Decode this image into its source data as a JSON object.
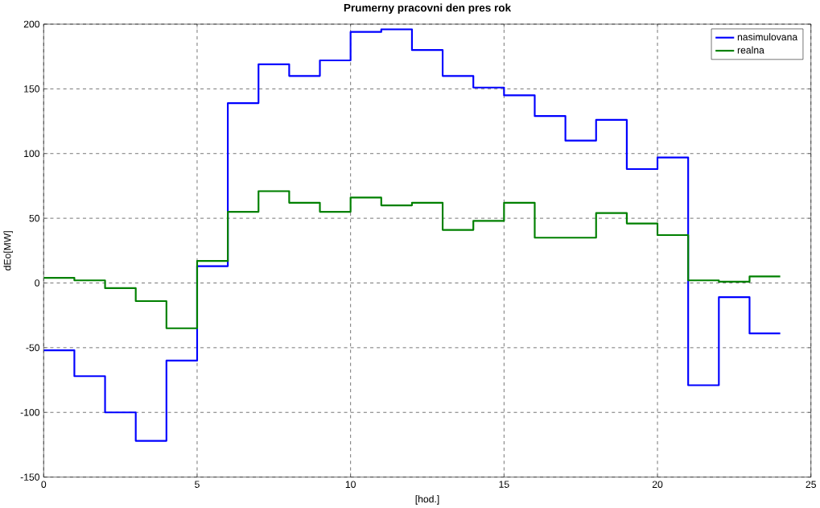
{
  "chart_data": {
    "type": "step",
    "title": "Prumerny pracovni den pres rok",
    "xlabel": "[hod.]",
    "ylabel": "dEo[MW]",
    "x": [
      0,
      1,
      2,
      3,
      4,
      5,
      6,
      7,
      8,
      9,
      10,
      11,
      12,
      13,
      14,
      15,
      16,
      17,
      18,
      19,
      20,
      21,
      22,
      23,
      24
    ],
    "series": [
      {
        "name": "nasimulovana",
        "color": "#0000ff",
        "values": [
          -52,
          -72,
          -100,
          -122,
          -60,
          13,
          139,
          169,
          160,
          172,
          194,
          196,
          180,
          160,
          151,
          145,
          129,
          110,
          126,
          88,
          97,
          -79,
          -11,
          -39,
          -39
        ]
      },
      {
        "name": "realna",
        "color": "#008000",
        "values": [
          4,
          2,
          -4,
          -14,
          -35,
          17,
          55,
          71,
          62,
          55,
          66,
          60,
          62,
          41,
          48,
          62,
          35,
          35,
          54,
          46,
          37,
          2,
          1,
          5,
          5
        ]
      }
    ],
    "xlim": [
      0,
      25
    ],
    "ylim": [
      -150,
      200
    ],
    "xticks": [
      0,
      5,
      10,
      15,
      20,
      25
    ],
    "yticks": [
      -150,
      -100,
      -50,
      0,
      50,
      100,
      150,
      200
    ],
    "grid": true,
    "legend": "top right"
  }
}
